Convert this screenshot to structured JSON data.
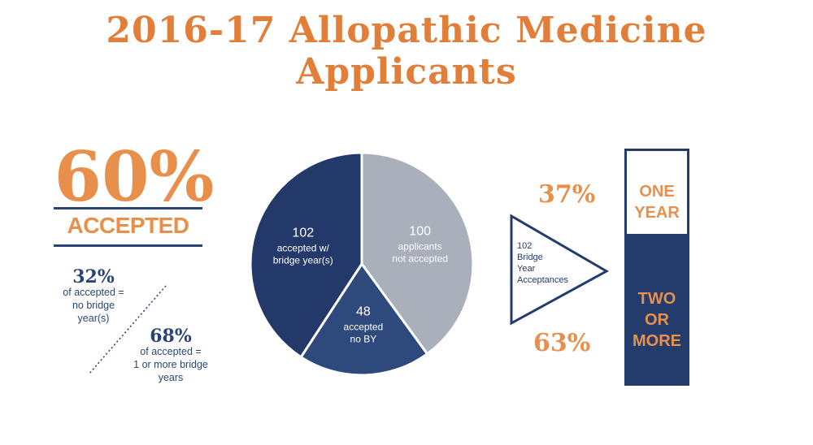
{
  "title": "2016-17 Allopathic Medicine Applicants",
  "headline": {
    "percent": "60%",
    "label": "ACCEPTED"
  },
  "stats": {
    "no_bridge": {
      "percent": "32%",
      "lines": [
        "of accepted =",
        "no bridge",
        "year(s)"
      ]
    },
    "bridge": {
      "percent": "68%",
      "lines": [
        "of accepted =",
        "1 or more bridge",
        "years"
      ]
    }
  },
  "colors": {
    "orange": "#e07e3a",
    "navy": "#243c6b",
    "navy_mid": "#2e4a7d",
    "gray": "#a9afbb"
  },
  "chart_data": [
    {
      "type": "pie",
      "slices": [
        {
          "value": 100,
          "count_label": "100",
          "lines": [
            "applicants",
            "not accepted"
          ],
          "color": "#a9afbb"
        },
        {
          "value": 48,
          "count_label": "48",
          "lines": [
            "accepted",
            "no BY"
          ],
          "color": "#2e4a7d"
        },
        {
          "value": 102,
          "count_label": "102",
          "lines": [
            "accepted w/",
            "bridge year(s)"
          ],
          "color": "#22396a"
        }
      ]
    },
    {
      "type": "bar",
      "stacked": true,
      "triangle_label": [
        "102",
        "Bridge",
        "Year",
        "Acceptances"
      ],
      "segments": [
        {
          "percent": 37,
          "percent_label": "37%",
          "label_lines": [
            "ONE",
            "YEAR"
          ]
        },
        {
          "percent": 63,
          "percent_label": "63%",
          "label_lines": [
            "TWO",
            "OR",
            "MORE"
          ]
        }
      ]
    }
  ]
}
